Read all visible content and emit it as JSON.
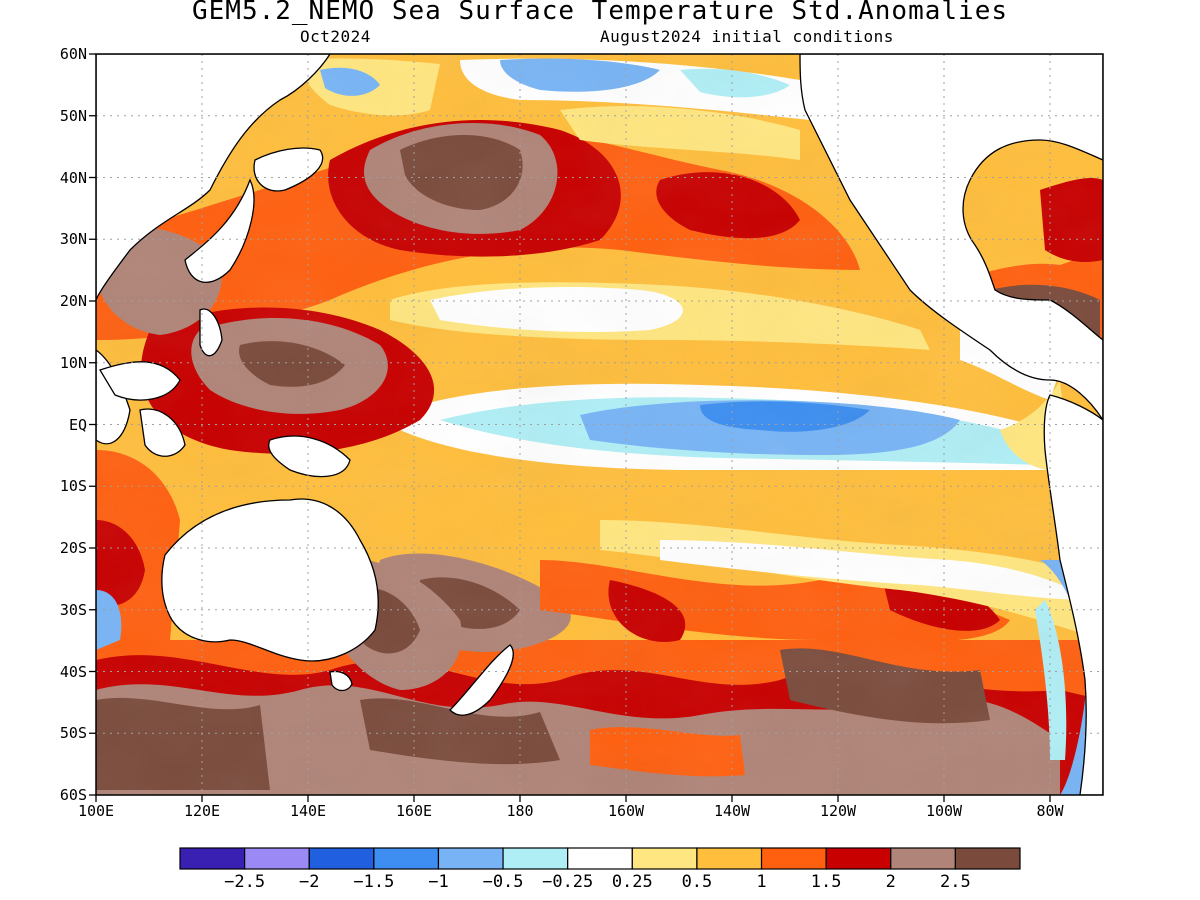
{
  "title": "GEM5.2_NEMO Sea Surface Temperature Std.Anomalies",
  "subtitle_left": "Oct2024",
  "subtitle_right": "August2024 initial conditions",
  "map": {
    "lon_range": [
      100,
      290
    ],
    "lat_range": [
      -60,
      60
    ],
    "grid": true,
    "lat_ticks": [
      {
        "value": 60,
        "label": "60N"
      },
      {
        "value": 50,
        "label": "50N"
      },
      {
        "value": 40,
        "label": "40N"
      },
      {
        "value": 30,
        "label": "30N"
      },
      {
        "value": 20,
        "label": "20N"
      },
      {
        "value": 10,
        "label": "10N"
      },
      {
        "value": 0,
        "label": "EQ"
      },
      {
        "value": -10,
        "label": "10S"
      },
      {
        "value": -20,
        "label": "20S"
      },
      {
        "value": -30,
        "label": "30S"
      },
      {
        "value": -40,
        "label": "40S"
      },
      {
        "value": -50,
        "label": "50S"
      },
      {
        "value": -60,
        "label": "60S"
      }
    ],
    "lon_ticks": [
      {
        "value": 100,
        "label": "100E"
      },
      {
        "value": 120,
        "label": "120E"
      },
      {
        "value": 140,
        "label": "140E"
      },
      {
        "value": 160,
        "label": "160E"
      },
      {
        "value": 180,
        "label": "180"
      },
      {
        "value": 200,
        "label": "160W"
      },
      {
        "value": 220,
        "label": "140W"
      },
      {
        "value": 240,
        "label": "120W"
      },
      {
        "value": 260,
        "label": "100W"
      },
      {
        "value": 280,
        "label": "80W"
      }
    ]
  },
  "colorbar": {
    "colors": [
      "#3a1fb3",
      "#9b8af5",
      "#1f5fe0",
      "#3d8ef0",
      "#78b4f5",
      "#b0eef5",
      "#ffffff",
      "#ffe680",
      "#ffbe3c",
      "#ff6010",
      "#c80000",
      "#b08478",
      "#7a4b3c"
    ],
    "labels": [
      "−2.5",
      "−2",
      "−1.5",
      "−1",
      "−0.5",
      "−0.25",
      "0.25",
      "0.5",
      "1",
      "1.5",
      "2",
      "2.5"
    ]
  }
}
